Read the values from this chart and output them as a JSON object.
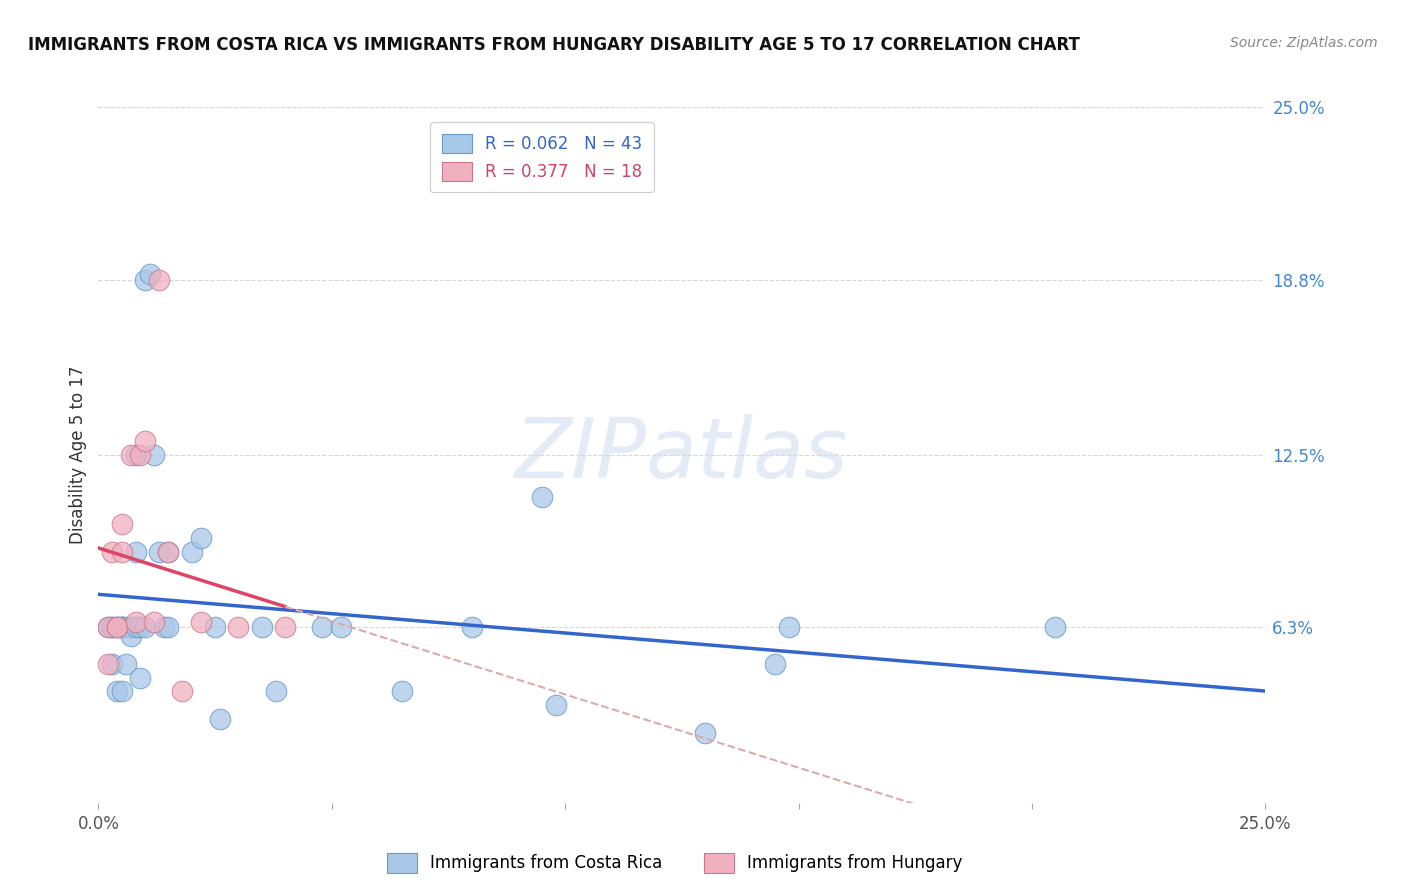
{
  "title": "IMMIGRANTS FROM COSTA RICA VS IMMIGRANTS FROM HUNGARY DISABILITY AGE 5 TO 17 CORRELATION CHART",
  "source": "Source: ZipAtlas.com",
  "ylabel": "Disability Age 5 to 17",
  "xlim": [
    0.0,
    0.25
  ],
  "ylim": [
    0.0,
    0.25
  ],
  "y_tick_labels_right": [
    "25.0%",
    "18.8%",
    "12.5%",
    "6.3%"
  ],
  "y_tick_positions_right": [
    0.25,
    0.188,
    0.125,
    0.063
  ],
  "background_color": "#ffffff",
  "grid_color": "#d8d8d8",
  "watermark_text": "ZIPatlas",
  "cr_color": "#a8c8e8",
  "cr_edge_color": "#6699cc",
  "hu_color": "#f0b0c0",
  "hu_edge_color": "#cc7788",
  "reg_blue": "#3366cc",
  "reg_pink": "#dd4466",
  "reg_pink_dash": "#ddaaaa",
  "cr_x": [
    0.002,
    0.003,
    0.003,
    0.003,
    0.004,
    0.004,
    0.005,
    0.005,
    0.005,
    0.005,
    0.006,
    0.006,
    0.007,
    0.007,
    0.008,
    0.008,
    0.008,
    0.009,
    0.009,
    0.01,
    0.01,
    0.011,
    0.012,
    0.013,
    0.014,
    0.015,
    0.015,
    0.02,
    0.022,
    0.025,
    0.026,
    0.035,
    0.038,
    0.048,
    0.052,
    0.065,
    0.08,
    0.095,
    0.098,
    0.13,
    0.145,
    0.148,
    0.205
  ],
  "cr_y": [
    0.063,
    0.063,
    0.063,
    0.05,
    0.063,
    0.04,
    0.063,
    0.063,
    0.063,
    0.04,
    0.063,
    0.05,
    0.063,
    0.06,
    0.063,
    0.09,
    0.125,
    0.063,
    0.045,
    0.063,
    0.188,
    0.19,
    0.125,
    0.09,
    0.063,
    0.09,
    0.063,
    0.09,
    0.095,
    0.063,
    0.03,
    0.063,
    0.04,
    0.063,
    0.063,
    0.04,
    0.063,
    0.11,
    0.035,
    0.025,
    0.05,
    0.063,
    0.063
  ],
  "hu_x": [
    0.002,
    0.002,
    0.003,
    0.004,
    0.004,
    0.005,
    0.005,
    0.007,
    0.008,
    0.009,
    0.01,
    0.012,
    0.013,
    0.015,
    0.018,
    0.022,
    0.03,
    0.04
  ],
  "hu_y": [
    0.063,
    0.05,
    0.09,
    0.063,
    0.063,
    0.1,
    0.09,
    0.125,
    0.065,
    0.125,
    0.13,
    0.065,
    0.188,
    0.09,
    0.04,
    0.065,
    0.063,
    0.063
  ]
}
